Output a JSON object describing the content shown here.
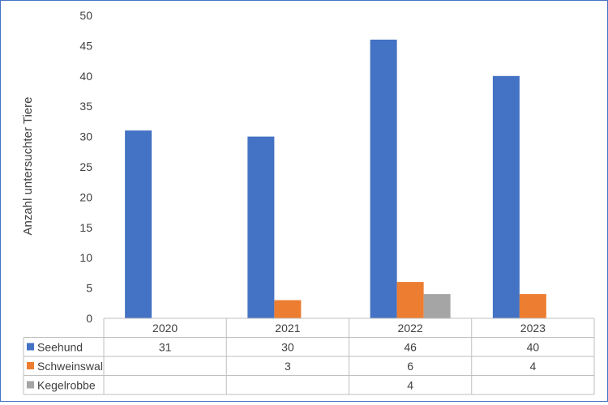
{
  "chart_data": {
    "type": "bar",
    "ylabel": "Anzahl untersuchter Tiere",
    "ylim": [
      0,
      50
    ],
    "y_ticks": [
      0,
      5,
      10,
      15,
      20,
      25,
      30,
      35,
      40,
      45,
      50
    ],
    "grid": false,
    "legend": "data-table",
    "categories": [
      "2020",
      "2021",
      "2022",
      "2023"
    ],
    "series": [
      {
        "name": "Seehund",
        "color": "#4472c4",
        "values": [
          31,
          30,
          46,
          40
        ]
      },
      {
        "name": "Schweinswal",
        "color": "#ed7d31",
        "values": [
          null,
          3,
          6,
          4
        ]
      },
      {
        "name": "Kegelrobbe",
        "color": "#a5a5a5",
        "values": [
          null,
          null,
          4,
          null
        ]
      }
    ]
  }
}
